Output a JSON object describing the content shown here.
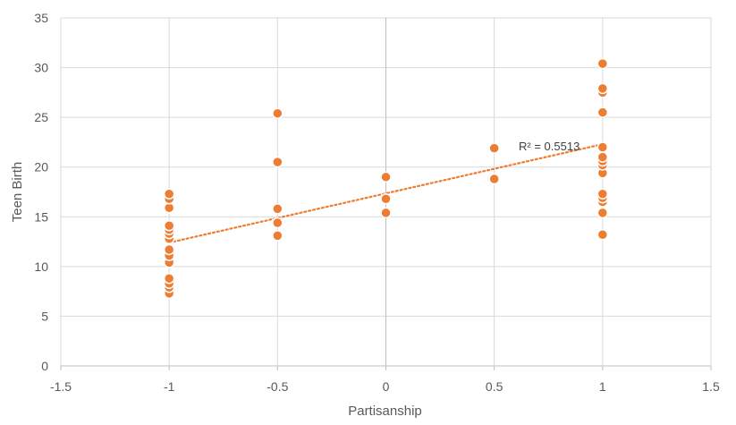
{
  "chart_data": {
    "type": "scatter",
    "xlabel": "Partisanship",
    "ylabel": "Teen Birth",
    "xlim": [
      -1.5,
      1.5
    ],
    "ylim": [
      0,
      35
    ],
    "x_ticks": [
      -1.5,
      -1,
      -0.5,
      0,
      0.5,
      1,
      1.5
    ],
    "x_tick_labels": [
      "-1.5",
      "-1",
      "-0.5",
      "0",
      "0.5",
      "1",
      "1.5"
    ],
    "y_ticks": [
      0,
      5,
      10,
      15,
      20,
      25,
      30,
      35
    ],
    "y_tick_labels": [
      "0",
      "5",
      "10",
      "15",
      "20",
      "25",
      "30",
      "35"
    ],
    "grid": true,
    "marker_color": "#ED7D31",
    "series": [
      {
        "points": [
          [
            -1,
            7.3
          ],
          [
            -1,
            7.9
          ],
          [
            -1,
            8.3
          ],
          [
            -1,
            8.8
          ],
          [
            -1,
            10.4
          ],
          [
            -1,
            11.1
          ],
          [
            -1,
            11.7
          ],
          [
            -1,
            12.8
          ],
          [
            -1,
            13.3
          ],
          [
            -1,
            13.7
          ],
          [
            -1,
            14.1
          ],
          [
            -1,
            15.9
          ],
          [
            -1,
            16.8
          ],
          [
            -1,
            17.3
          ],
          [
            -0.5,
            13.1
          ],
          [
            -0.5,
            14.4
          ],
          [
            -0.5,
            15.8
          ],
          [
            -0.5,
            20.5
          ],
          [
            -0.5,
            25.4
          ],
          [
            0,
            15.4
          ],
          [
            0,
            16.8
          ],
          [
            0,
            19.0
          ],
          [
            0.5,
            18.8
          ],
          [
            0.5,
            21.9
          ],
          [
            1,
            13.2
          ],
          [
            1,
            15.4
          ],
          [
            1,
            16.5
          ],
          [
            1,
            16.9
          ],
          [
            1,
            17.3
          ],
          [
            1,
            19.4
          ],
          [
            1,
            20.2
          ],
          [
            1,
            20.6
          ],
          [
            1,
            21.0
          ],
          [
            1,
            22.0
          ],
          [
            1,
            25.5
          ],
          [
            1,
            27.5
          ],
          [
            1,
            27.9
          ],
          [
            1,
            30.4
          ]
        ]
      }
    ],
    "trendline": {
      "type": "linear",
      "x_range": [
        -1,
        1
      ],
      "y_start": 12.4,
      "y_end": 22.3,
      "color": "#ED7D31",
      "style": "dotted",
      "label": "R² = 0.5513"
    }
  }
}
